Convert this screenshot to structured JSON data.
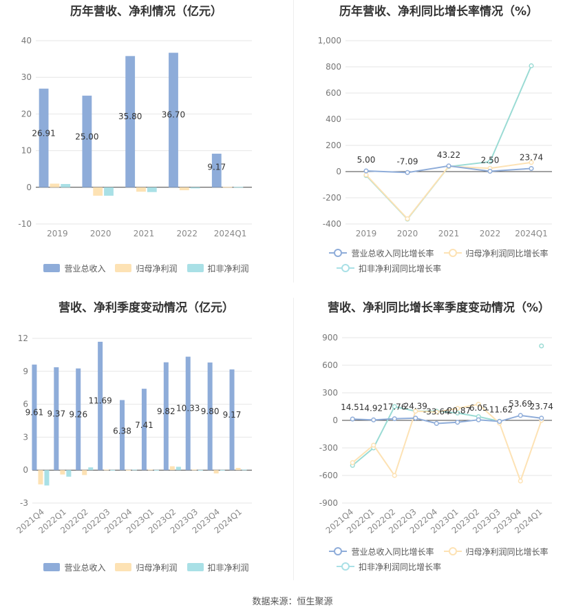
{
  "source": "数据来源：恒生聚源",
  "colors": {
    "revenue": "#8eacd9",
    "net_profit": "#fde2b4",
    "deducted_profit": "#a9e0e6",
    "revenue_line": "#8eacd9",
    "np_line": "#fde2b4",
    "dp_line": "#9adbd4"
  },
  "legend_bar": [
    "营业总收入",
    "归母净利润",
    "扣非净利润"
  ],
  "legend_line": [
    "营业总收入同比增长率",
    "归母净利润同比增长率",
    "扣非净利润同比增长率"
  ],
  "chart_data": [
    {
      "type": "bar",
      "title": "历年营收、净利情况（亿元）",
      "categories": [
        "2019",
        "2020",
        "2021",
        "2022",
        "2024Q1"
      ],
      "ylim": [
        -10,
        40
      ],
      "yticks": [
        -10,
        0,
        10,
        20,
        30,
        40
      ],
      "series": [
        {
          "name": "营业总收入",
          "values": [
            26.91,
            25.0,
            35.8,
            36.7,
            9.17
          ],
          "labels": [
            "26.91",
            "25.00",
            "35.80",
            "36.70",
            "9.17"
          ]
        },
        {
          "name": "归母净利润",
          "values": [
            1.0,
            -2.3,
            -1.2,
            -0.8,
            0.1
          ]
        },
        {
          "name": "扣非净利润",
          "values": [
            0.9,
            -2.3,
            -1.3,
            -0.3,
            0.1
          ]
        }
      ],
      "legend": "bottom",
      "grid": true
    },
    {
      "type": "line",
      "title": "历年营收、净利同比增长率情况（%）",
      "categories": [
        "2019",
        "2020",
        "2021",
        "2022",
        "2024Q1"
      ],
      "ylim": [
        -400,
        1000
      ],
      "yticks": [
        -400,
        -200,
        0,
        200,
        400,
        600,
        800,
        1000
      ],
      "ytick_labels": [
        "-400",
        "-200",
        "0",
        "200",
        "400",
        "600",
        "800",
        "1,000"
      ],
      "series": [
        {
          "name": "营业总收入同比增长率",
          "values": [
            5.0,
            -7.09,
            43.22,
            2.5,
            23.74
          ],
          "labels": [
            "5.00",
            "-7.09",
            "43.22",
            "2.50",
            "23.74"
          ]
        },
        {
          "name": "归母净利润同比增长率",
          "values": [
            -25,
            -360,
            40,
            25,
            70
          ]
        },
        {
          "name": "扣非净利润同比增长率",
          "values": [
            -30,
            -363,
            38,
            75,
            808
          ]
        }
      ],
      "legend": "bottom",
      "grid": true
    },
    {
      "type": "bar",
      "title": "营收、净利季度变动情况（亿元）",
      "categories": [
        "2021Q4",
        "2022Q1",
        "2022Q2",
        "2022Q3",
        "2022Q4",
        "2023Q1",
        "2023Q2",
        "2023Q3",
        "2023Q4",
        "2024Q1"
      ],
      "ylim": [
        -3,
        12
      ],
      "yticks": [
        -3,
        0,
        3,
        6,
        9,
        12
      ],
      "series": [
        {
          "name": "营业总收入",
          "values": [
            9.61,
            9.37,
            9.26,
            11.69,
            6.38,
            7.41,
            9.82,
            10.33,
            9.8,
            9.17
          ],
          "labels": [
            "9.61",
            "9.37",
            "9.26",
            "11.69",
            "6.38",
            "7.41",
            "9.82",
            "10.33",
            "9.80",
            "9.17"
          ]
        },
        {
          "name": "归母净利润",
          "values": [
            -1.3,
            -0.4,
            -0.45,
            0.05,
            0.02,
            0.05,
            0.35,
            0.05,
            -0.3,
            0.2
          ]
        },
        {
          "name": "扣非净利润",
          "values": [
            -1.4,
            -0.6,
            0.25,
            0.02,
            0.05,
            0.02,
            0.3,
            0.02,
            0.02,
            0.05
          ]
        }
      ],
      "legend": "bottom",
      "grid": true
    },
    {
      "type": "line",
      "title": "营收、净利同比增长率季度变动情况（%）",
      "categories": [
        "2021Q4",
        "2022Q1",
        "2022Q2",
        "2022Q3",
        "2022Q4",
        "2023Q1",
        "2023Q2",
        "2023Q3",
        "2023Q4",
        "2024Q1"
      ],
      "ylim": [
        -900,
        900
      ],
      "yticks": [
        -900,
        -600,
        -300,
        0,
        300,
        600,
        900
      ],
      "ytick_labels": [
        "-900",
        "-600",
        "-300",
        "0",
        "300",
        "600",
        "900"
      ],
      "series": [
        {
          "name": "营业总收入同比增长率",
          "values": [
            14.51,
            4.92,
            17.76,
            24.39,
            -33.64,
            -20.87,
            6.05,
            -11.62,
            53.69,
            23.74
          ],
          "labels": [
            "14.51",
            "4.92",
            "17.76",
            "24.39",
            "-33.64",
            "-20.87",
            "6.05",
            "-11.62",
            "53.69",
            "23.74"
          ]
        },
        {
          "name": "归母净利润同比增长率",
          "values": [
            -460,
            -270,
            -600,
            100,
            90,
            130,
            175,
            -30,
            -660,
            0
          ]
        },
        {
          "name": "扣非净利润同比增长率",
          "values": [
            -490,
            -300,
            150,
            100,
            100,
            80,
            40,
            -10,
            null,
            810
          ]
        }
      ],
      "legend": "bottom",
      "grid": true
    }
  ]
}
